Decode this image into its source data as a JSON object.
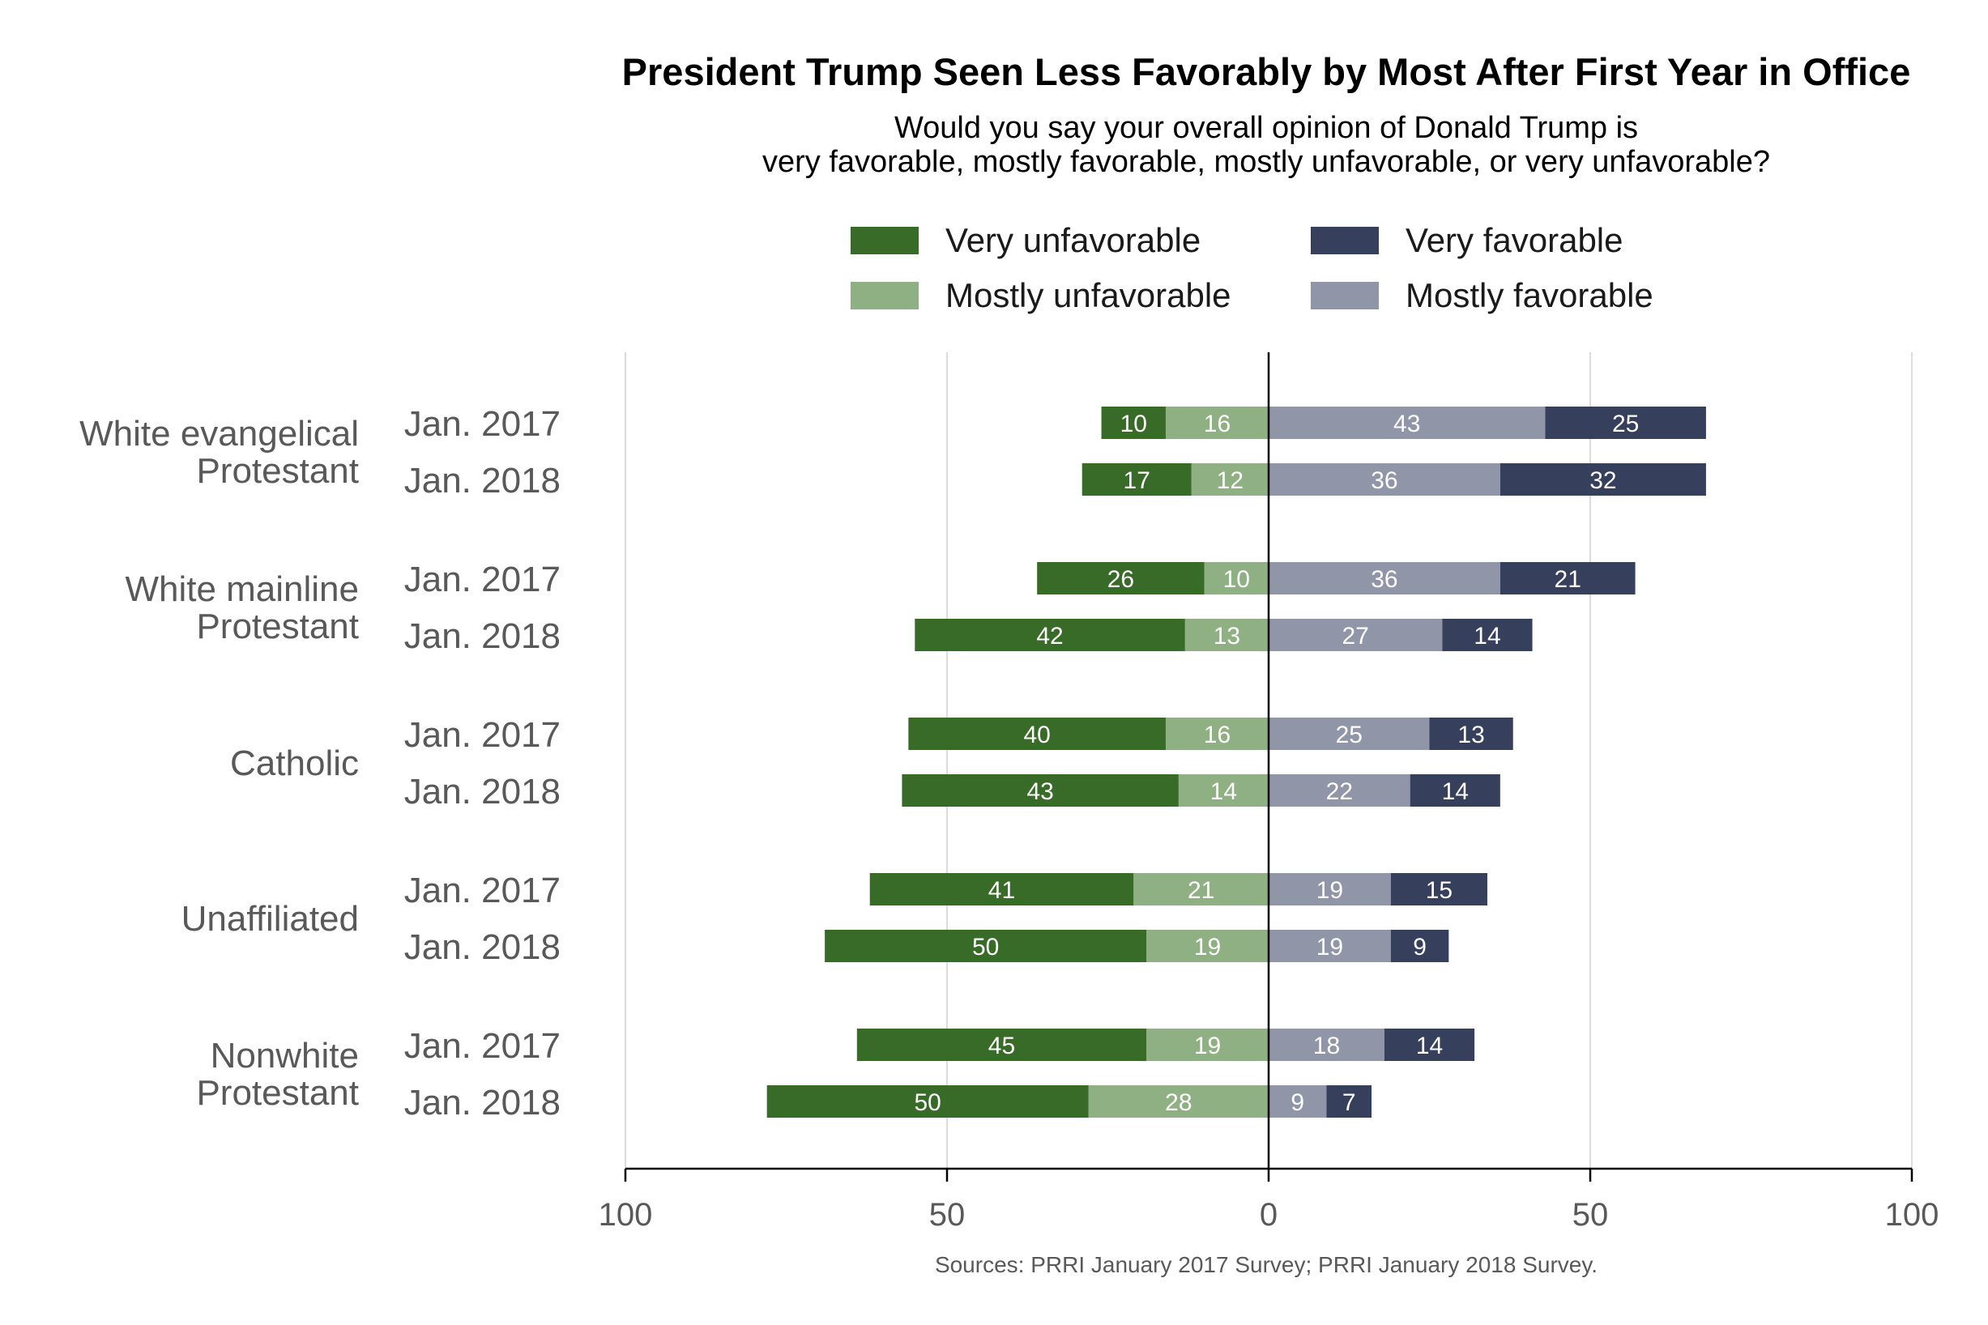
{
  "chart_data": {
    "type": "bar",
    "orientation": "horizontal",
    "stacked": "diverging",
    "title": "President Trump Seen Less Favorably by Most After First Year in Office",
    "subtitle_lines": [
      "Would you say your overall opinion of Donald Trump is",
      "very favorable, mostly favorable, mostly unfavorable, or very unfavorable?"
    ],
    "source": "Sources: PRRI January 2017 Survey; PRRI January 2018 Survey.",
    "xlim": [
      -100,
      100
    ],
    "x_ticks": [
      -100,
      -50,
      0,
      50,
      100
    ],
    "x_tick_labels": [
      "100",
      "50",
      "0",
      "50",
      "100"
    ],
    "legend_placement": "top",
    "legend": [
      {
        "key": "very_unfav",
        "label": "Very unfavorable"
      },
      {
        "key": "mostly_unfav",
        "label": "Mostly unfavorable"
      },
      {
        "key": "very_fav",
        "label": "Very favorable"
      },
      {
        "key": "mostly_fav",
        "label": "Mostly favorable"
      }
    ],
    "colors": {
      "very_unfav": "#386b28",
      "mostly_unfav": "#8fb082",
      "mostly_fav": "#9195a8",
      "very_fav": "#363f5c"
    },
    "groups": [
      {
        "label_lines": [
          "White evangelical",
          "Protestant"
        ],
        "rows": [
          {
            "date": "Jan. 2017",
            "very_unfav": 10,
            "mostly_unfav": 16,
            "mostly_fav": 43,
            "very_fav": 25
          },
          {
            "date": "Jan. 2018",
            "very_unfav": 17,
            "mostly_unfav": 12,
            "mostly_fav": 36,
            "very_fav": 32
          }
        ]
      },
      {
        "label_lines": [
          "White mainline",
          "Protestant"
        ],
        "rows": [
          {
            "date": "Jan. 2017",
            "very_unfav": 26,
            "mostly_unfav": 10,
            "mostly_fav": 36,
            "very_fav": 21
          },
          {
            "date": "Jan. 2018",
            "very_unfav": 42,
            "mostly_unfav": 13,
            "mostly_fav": 27,
            "very_fav": 14
          }
        ]
      },
      {
        "label_lines": [
          "Catholic"
        ],
        "rows": [
          {
            "date": "Jan. 2017",
            "very_unfav": 40,
            "mostly_unfav": 16,
            "mostly_fav": 25,
            "very_fav": 13
          },
          {
            "date": "Jan. 2018",
            "very_unfav": 43,
            "mostly_unfav": 14,
            "mostly_fav": 22,
            "very_fav": 14
          }
        ]
      },
      {
        "label_lines": [
          "Unaffiliated"
        ],
        "rows": [
          {
            "date": "Jan. 2017",
            "very_unfav": 41,
            "mostly_unfav": 21,
            "mostly_fav": 19,
            "very_fav": 15
          },
          {
            "date": "Jan. 2018",
            "very_unfav": 50,
            "mostly_unfav": 19,
            "mostly_fav": 19,
            "very_fav": 9
          }
        ]
      },
      {
        "label_lines": [
          "Nonwhite",
          "Protestant"
        ],
        "rows": [
          {
            "date": "Jan. 2017",
            "very_unfav": 45,
            "mostly_unfav": 19,
            "mostly_fav": 18,
            "very_fav": 14
          },
          {
            "date": "Jan. 2018",
            "very_unfav": 50,
            "mostly_unfav": 28,
            "mostly_fav": 9,
            "very_fav": 7
          }
        ]
      }
    ]
  }
}
